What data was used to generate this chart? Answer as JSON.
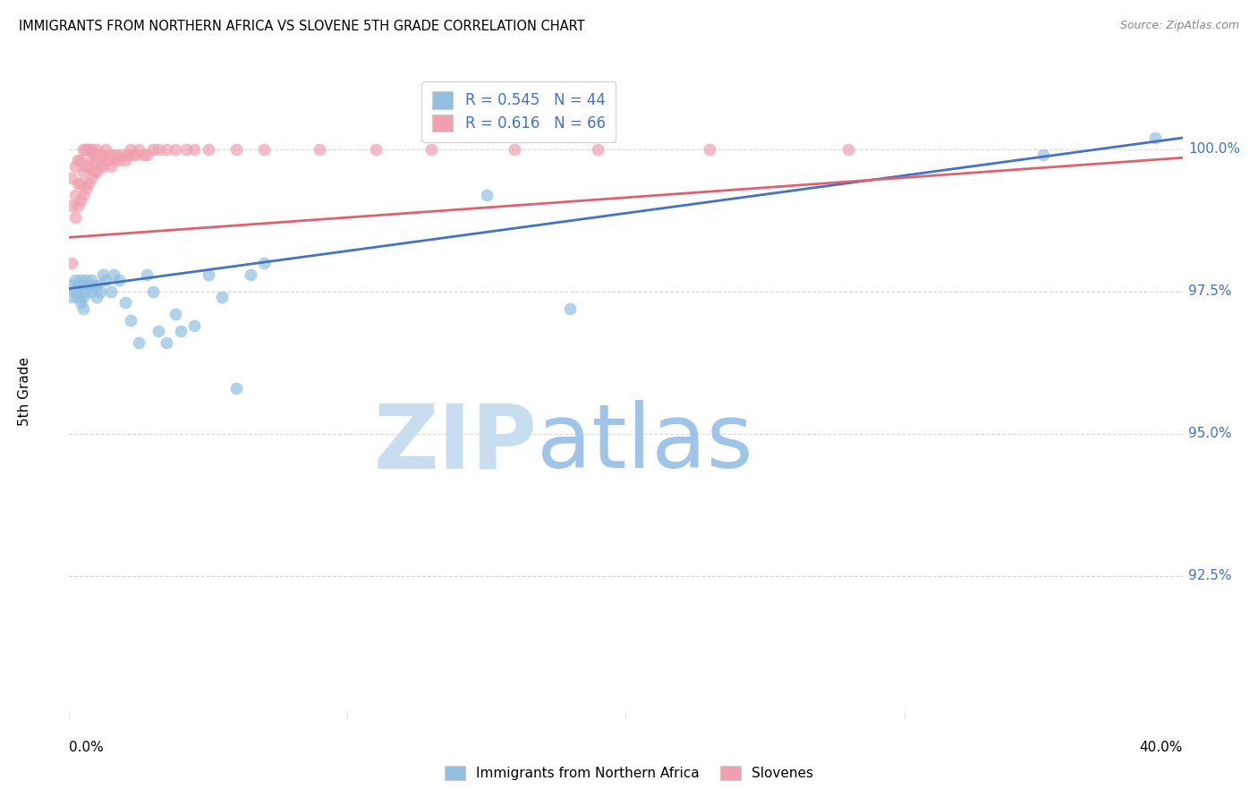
{
  "title": "IMMIGRANTS FROM NORTHERN AFRICA VS SLOVENE 5TH GRADE CORRELATION CHART",
  "source": "Source: ZipAtlas.com",
  "ylabel": "5th Grade",
  "xmin": 0.0,
  "xmax": 0.4,
  "ymin": 0.9,
  "ymax": 1.015,
  "yticks": [
    0.925,
    0.95,
    0.975,
    1.0
  ],
  "ytick_labels": [
    "92.5%",
    "95.0%",
    "97.5%",
    "100.0%"
  ],
  "legend_blue_label": "Immigrants from Northern Africa",
  "legend_pink_label": "Slovenes",
  "R_blue": 0.545,
  "N_blue": 44,
  "R_pink": 0.616,
  "N_pink": 66,
  "blue_color": "#92bfe0",
  "pink_color": "#f0a0b0",
  "blue_line_color": "#4472c4",
  "pink_line_color": "#e06070",
  "blue_scatter_x": [
    0.001,
    0.001,
    0.002,
    0.002,
    0.003,
    0.003,
    0.004,
    0.004,
    0.005,
    0.005,
    0.005,
    0.006,
    0.006,
    0.007,
    0.008,
    0.008,
    0.009,
    0.01,
    0.01,
    0.011,
    0.012,
    0.013,
    0.015,
    0.016,
    0.018,
    0.02,
    0.022,
    0.025,
    0.028,
    0.03,
    0.032,
    0.035,
    0.038,
    0.04,
    0.045,
    0.05,
    0.055,
    0.06,
    0.065,
    0.07,
    0.15,
    0.18,
    0.35,
    0.39
  ],
  "blue_scatter_y": [
    0.976,
    0.974,
    0.977,
    0.975,
    0.976,
    0.974,
    0.977,
    0.973,
    0.976,
    0.974,
    0.972,
    0.977,
    0.975,
    0.976,
    0.977,
    0.975,
    0.976,
    0.974,
    0.976,
    0.975,
    0.978,
    0.977,
    0.975,
    0.978,
    0.977,
    0.973,
    0.97,
    0.966,
    0.978,
    0.975,
    0.968,
    0.966,
    0.971,
    0.968,
    0.969,
    0.978,
    0.974,
    0.958,
    0.978,
    0.98,
    0.992,
    0.972,
    0.999,
    1.002
  ],
  "pink_scatter_x": [
    0.001,
    0.001,
    0.001,
    0.002,
    0.002,
    0.002,
    0.003,
    0.003,
    0.003,
    0.004,
    0.004,
    0.004,
    0.005,
    0.005,
    0.005,
    0.006,
    0.006,
    0.006,
    0.007,
    0.007,
    0.007,
    0.008,
    0.008,
    0.008,
    0.009,
    0.009,
    0.01,
    0.01,
    0.01,
    0.011,
    0.011,
    0.012,
    0.012,
    0.013,
    0.013,
    0.014,
    0.015,
    0.015,
    0.016,
    0.017,
    0.018,
    0.019,
    0.02,
    0.021,
    0.022,
    0.023,
    0.024,
    0.025,
    0.027,
    0.028,
    0.03,
    0.032,
    0.035,
    0.038,
    0.042,
    0.045,
    0.05,
    0.06,
    0.07,
    0.09,
    0.11,
    0.13,
    0.16,
    0.19,
    0.23,
    0.28
  ],
  "pink_scatter_y": [
    0.98,
    0.99,
    0.995,
    0.988,
    0.992,
    0.997,
    0.99,
    0.994,
    0.998,
    0.991,
    0.994,
    0.998,
    0.992,
    0.996,
    1.0,
    0.993,
    0.997,
    1.0,
    0.994,
    0.997,
    1.0,
    0.995,
    0.998,
    1.0,
    0.996,
    0.999,
    0.996,
    0.998,
    1.0,
    0.997,
    0.999,
    0.997,
    0.999,
    0.998,
    1.0,
    0.998,
    0.997,
    0.999,
    0.998,
    0.999,
    0.998,
    0.999,
    0.998,
    0.999,
    1.0,
    0.999,
    0.999,
    1.0,
    0.999,
    0.999,
    1.0,
    1.0,
    1.0,
    1.0,
    1.0,
    1.0,
    1.0,
    1.0,
    1.0,
    1.0,
    1.0,
    1.0,
    1.0,
    1.0,
    1.0,
    1.0
  ],
  "watermark_zip": "ZIP",
  "watermark_atlas": "atlas",
  "watermark_color_zip": "#c8ddf0",
  "watermark_color_atlas": "#a0c4e8",
  "grid_color": "#d8d8d8",
  "right_axis_color": "#4472c4"
}
